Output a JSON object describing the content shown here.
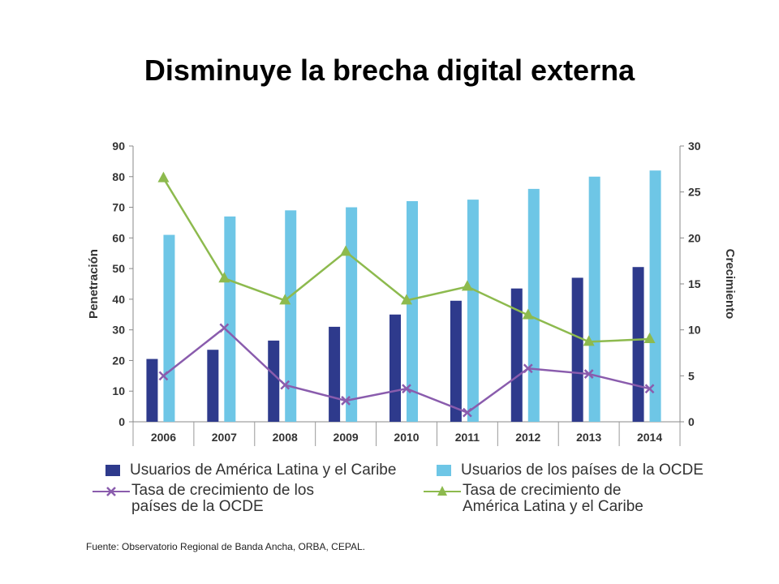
{
  "title": "Disminuye la brecha digital externa",
  "source": "Fuente: Observatorio Regional de Banda Ancha, ORBA, CEPAL.",
  "chart_data": {
    "type": "bar",
    "categories": [
      "2006",
      "2007",
      "2008",
      "2009",
      "2010",
      "2011",
      "2012",
      "2013",
      "2014"
    ],
    "ylabel": "Penetración",
    "y2label": "Crecimiento",
    "ylim": [
      0,
      90
    ],
    "y2lim": [
      0,
      30
    ],
    "yticks": [
      "0",
      "10",
      "20",
      "30",
      "40",
      "50",
      "60",
      "70",
      "80",
      "90"
    ],
    "y2ticks": [
      "0",
      "5",
      "10",
      "15",
      "20",
      "25",
      "30"
    ],
    "series": [
      {
        "name": "Usuarios de América Latina y el Caribe",
        "kind": "bar",
        "axis": "left",
        "color": "#2e3a8c",
        "values": [
          20.5,
          23.5,
          26.5,
          31,
          35,
          39.5,
          43.5,
          47,
          50.5
        ]
      },
      {
        "name": "Usuarios de los países de la OCDE",
        "kind": "bar",
        "axis": "left",
        "color": "#6ec6e6",
        "values": [
          61,
          67,
          69,
          70,
          72,
          72.5,
          76,
          80,
          82
        ]
      },
      {
        "name_lines": [
          "Tasa de crecimiento de los",
          "países de la OCDE"
        ],
        "kind": "line",
        "axis": "right",
        "color": "#8a5cad",
        "marker": "x",
        "values": [
          5,
          10.2,
          4,
          2.3,
          3.6,
          1,
          5.8,
          5.2,
          3.6
        ]
      },
      {
        "name_lines": [
          "Tasa de crecimiento de",
          "América Latina y el Caribe"
        ],
        "kind": "line",
        "axis": "right",
        "color": "#8dba4e",
        "marker": "triangle",
        "values": [
          26.5,
          15.6,
          13.2,
          18.5,
          13.2,
          14.7,
          11.6,
          8.7,
          9
        ]
      }
    ],
    "legend": "bottom",
    "grid": false
  }
}
